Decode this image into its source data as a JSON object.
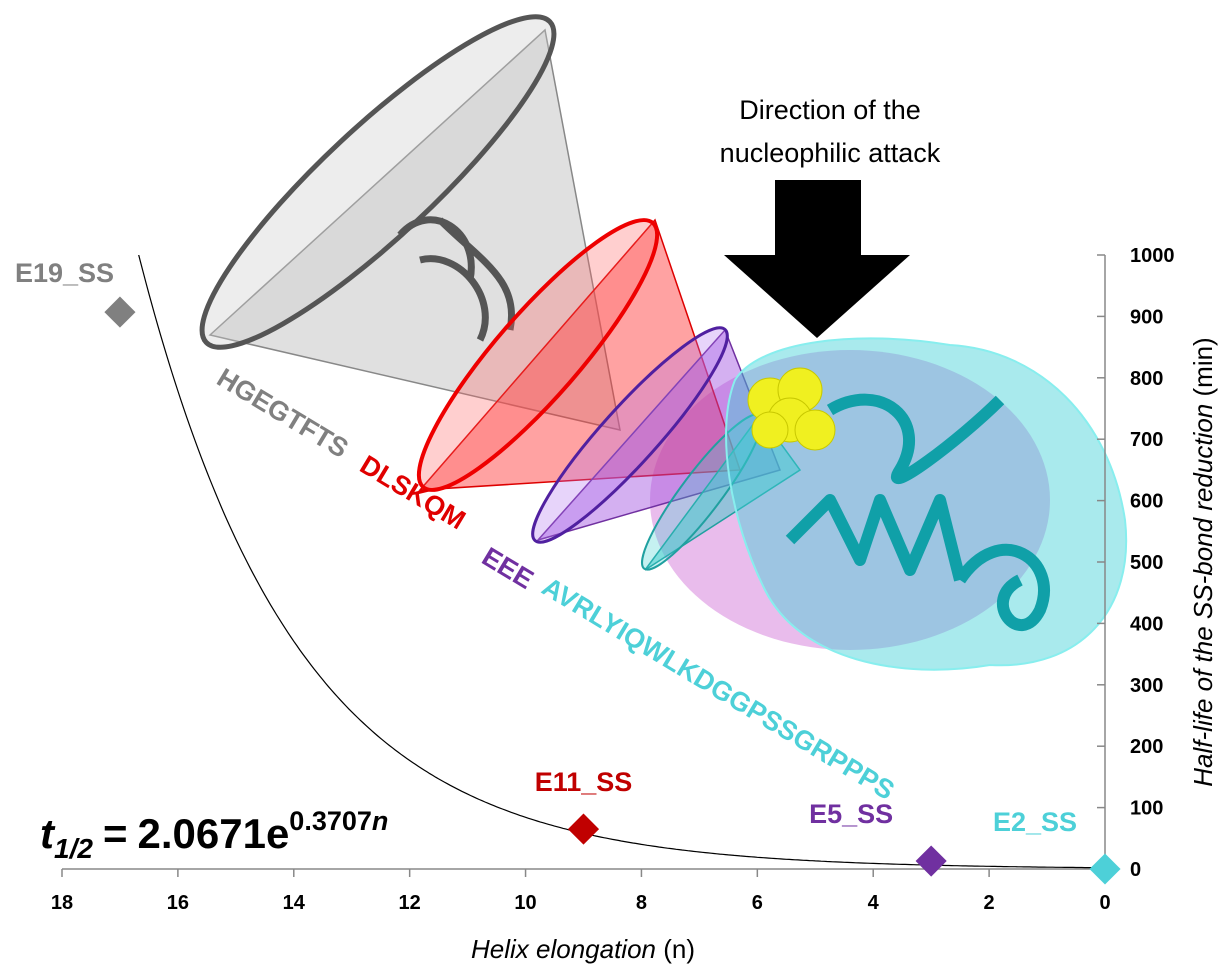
{
  "chart_data": {
    "type": "scatter",
    "xlabel": [
      "Helix elongation",
      "(n)"
    ],
    "ylabel": [
      "Half-life of the SS-bond reduction",
      "(min)"
    ],
    "xlim": [
      18,
      0
    ],
    "xticks": [
      18,
      16,
      14,
      12,
      10,
      8,
      6,
      4,
      2,
      0
    ],
    "ylim": [
      0,
      1000
    ],
    "yticks": [
      0,
      100,
      200,
      300,
      400,
      500,
      600,
      700,
      800,
      900,
      1000
    ],
    "series": [
      {
        "name": "E19_SS",
        "color": "#808080",
        "x": [
          17
        ],
        "values": [
          907
        ]
      },
      {
        "name": "E11_SS",
        "color": "#c00000",
        "x": [
          9
        ],
        "values": [
          65
        ]
      },
      {
        "name": "E5_SS",
        "color": "#7030a0",
        "x": [
          3
        ],
        "values": [
          13
        ]
      },
      {
        "name": "E2_SS",
        "color": "#4dd0d8",
        "x": [
          0
        ],
        "values": [
          0
        ]
      }
    ],
    "fit": {
      "symbol": "t",
      "subscript": "1/2",
      "equals": "=",
      "coefficient": 2.0671,
      "base": "e",
      "exponent": 0.3707,
      "variable": "n"
    },
    "annotation": [
      "Direction of the",
      "nucleophilic attack"
    ],
    "sequences": [
      {
        "text": "HGEGTFTS",
        "color": "#808080"
      },
      {
        "text": "DLSKQM",
        "color": "#e00000"
      },
      {
        "text": "EEE",
        "color": "#7030a0"
      },
      {
        "text": "AVRLYIQWLKDGGPSSGRPPPS",
        "color": "#4dd0d8"
      }
    ]
  }
}
